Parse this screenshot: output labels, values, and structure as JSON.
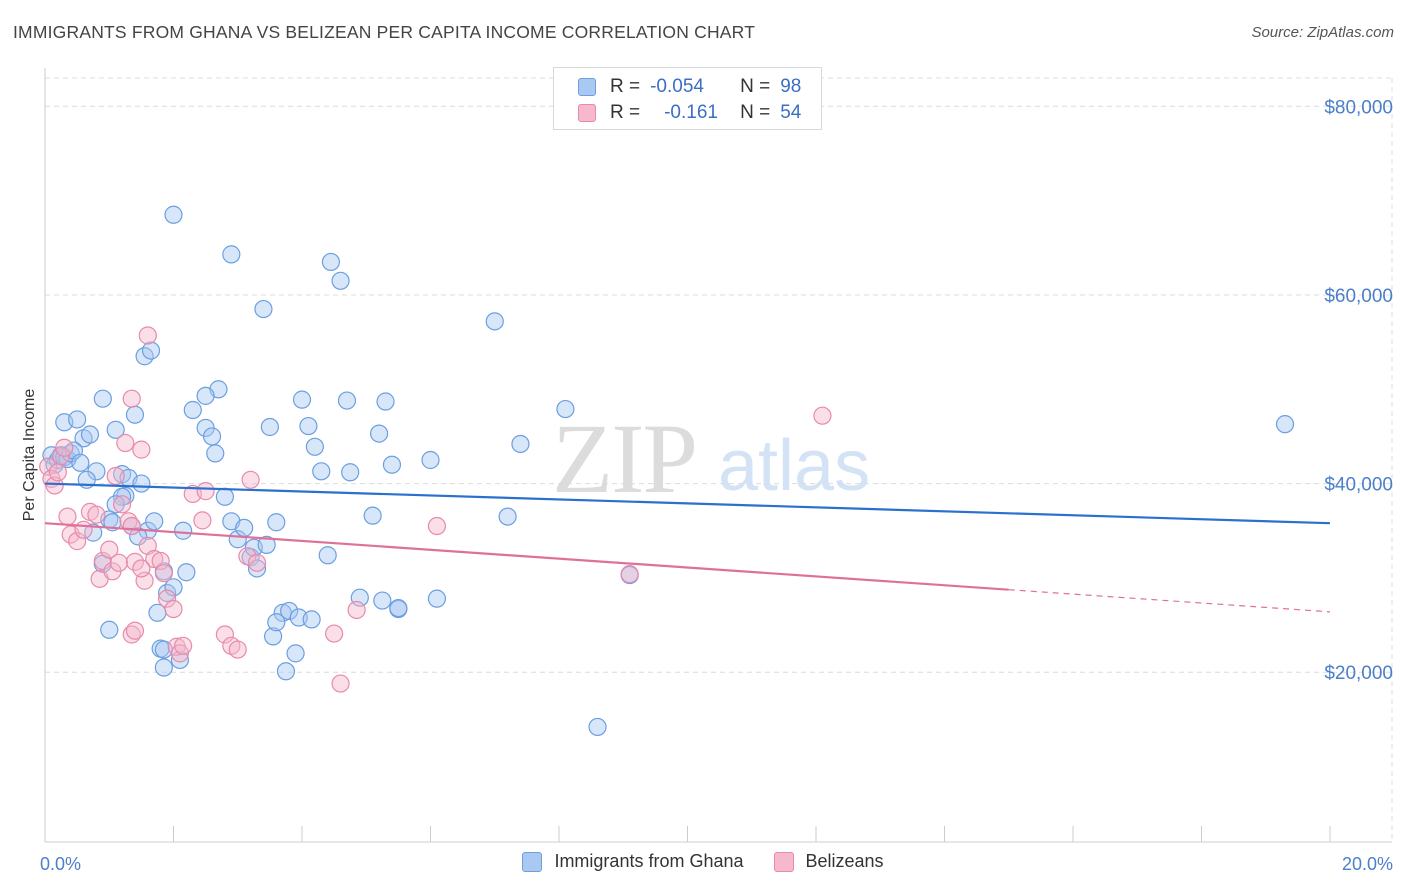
{
  "title": "IMMIGRANTS FROM GHANA VS BELIZEAN PER CAPITA INCOME CORRELATION CHART",
  "source": "Source: ZipAtlas.com",
  "watermark": {
    "zip": "ZIP",
    "atlas": "atlas"
  },
  "legend_top": {
    "rows": [
      {
        "r_label": "R =",
        "r_value": "-0.054",
        "n_label": "N =",
        "n_value": "98"
      },
      {
        "r_label": "R =",
        "r_value": "-0.161",
        "n_label": "N =",
        "n_value": "54"
      }
    ]
  },
  "colors": {
    "blue_fill": "#a9c8f2",
    "blue_stroke": "#6b9fe0",
    "blue_line": "#2b6fcf",
    "pink_fill": "#f5b8cc",
    "pink_stroke": "#e88aab",
    "pink_line": "#e0709a",
    "grid": "#dcdcdc",
    "tick_text": "#4a7fc9"
  },
  "chart_data": {
    "type": "scatter",
    "title": "IMMIGRANTS FROM GHANA VS BELIZEAN PER CAPITA INCOME CORRELATION CHART",
    "xlabel": "",
    "ylabel": "Per Capita Income",
    "xlim": [
      0,
      20
    ],
    "ylim": [
      2000,
      83000
    ],
    "x_tick_labels": [
      {
        "value": 0,
        "label": "0.0%"
      },
      {
        "value": 20,
        "label": "20.0%"
      }
    ],
    "y_tick_labels": [
      {
        "value": 20000,
        "label": "$20,000"
      },
      {
        "value": 40000,
        "label": "$40,000"
      },
      {
        "value": 60000,
        "label": "$60,000"
      },
      {
        "value": 80000,
        "label": "$80,000"
      }
    ],
    "grid": true,
    "legend_position": "bottom-center",
    "series": [
      {
        "name": "Immigrants from Ghana",
        "color": "#6b9fe0",
        "r": -0.054,
        "n": 98,
        "trend": {
          "x": [
            0,
            20
          ],
          "y": [
            40000,
            35800
          ],
          "dashed_from": null
        },
        "points": [
          [
            0.1,
            43000
          ],
          [
            0.15,
            42000
          ],
          [
            0.2,
            42500
          ],
          [
            0.25,
            43000
          ],
          [
            0.3,
            42800
          ],
          [
            0.35,
            42600
          ],
          [
            0.4,
            43200
          ],
          [
            0.3,
            46500
          ],
          [
            0.5,
            46800
          ],
          [
            0.6,
            44800
          ],
          [
            0.7,
            45200
          ],
          [
            0.45,
            43500
          ],
          [
            0.55,
            42200
          ],
          [
            0.8,
            41300
          ],
          [
            0.65,
            40400
          ],
          [
            0.9,
            49000
          ],
          [
            1.1,
            45700
          ],
          [
            1.2,
            41000
          ],
          [
            1.3,
            40600
          ],
          [
            1.4,
            47300
          ],
          [
            1.5,
            40000
          ],
          [
            1.6,
            35000
          ],
          [
            0.75,
            34800
          ],
          [
            1.0,
            36200
          ],
          [
            1.05,
            35900
          ],
          [
            1.25,
            38700
          ],
          [
            1.35,
            35500
          ],
          [
            1.45,
            34400
          ],
          [
            1.2,
            38600
          ],
          [
            1.0,
            24500
          ],
          [
            0.9,
            31500
          ],
          [
            1.7,
            36000
          ],
          [
            1.85,
            30700
          ],
          [
            1.9,
            28400
          ],
          [
            2.0,
            29000
          ],
          [
            1.75,
            26300
          ],
          [
            1.8,
            22500
          ],
          [
            1.85,
            22400
          ],
          [
            2.1,
            21300
          ],
          [
            1.85,
            20500
          ],
          [
            2.0,
            68500
          ],
          [
            2.9,
            64300
          ],
          [
            2.7,
            50000
          ],
          [
            2.5,
            49300
          ],
          [
            2.3,
            47800
          ],
          [
            2.5,
            45900
          ],
          [
            2.6,
            45000
          ],
          [
            2.65,
            43200
          ],
          [
            2.8,
            38600
          ],
          [
            2.9,
            36000
          ],
          [
            3.0,
            34100
          ],
          [
            3.1,
            35300
          ],
          [
            3.2,
            32200
          ],
          [
            3.3,
            31000
          ],
          [
            3.4,
            58500
          ],
          [
            3.5,
            46000
          ],
          [
            3.6,
            35900
          ],
          [
            3.7,
            26300
          ],
          [
            3.8,
            26500
          ],
          [
            3.55,
            23800
          ],
          [
            3.75,
            20100
          ],
          [
            3.9,
            22000
          ],
          [
            4.0,
            48900
          ],
          [
            4.1,
            46100
          ],
          [
            4.2,
            43900
          ],
          [
            4.3,
            41300
          ],
          [
            4.4,
            32400
          ],
          [
            4.45,
            63500
          ],
          [
            4.6,
            61500
          ],
          [
            4.7,
            48800
          ],
          [
            4.75,
            41200
          ],
          [
            4.9,
            27900
          ],
          [
            5.1,
            36600
          ],
          [
            5.2,
            45300
          ],
          [
            5.25,
            27600
          ],
          [
            5.3,
            48700
          ],
          [
            5.4,
            42000
          ],
          [
            5.5,
            26700
          ],
          [
            5.5,
            26800
          ],
          [
            6.0,
            42500
          ],
          [
            6.1,
            27800
          ],
          [
            7.0,
            57200
          ],
          [
            7.2,
            36500
          ],
          [
            7.4,
            44200
          ],
          [
            8.1,
            47900
          ],
          [
            8.6,
            14200
          ],
          [
            9.1,
            30300
          ],
          [
            19.3,
            46300
          ],
          [
            1.55,
            53500
          ],
          [
            1.65,
            54100
          ],
          [
            1.1,
            37800
          ],
          [
            2.15,
            35000
          ],
          [
            2.2,
            30600
          ],
          [
            3.25,
            33200
          ],
          [
            3.45,
            33500
          ],
          [
            3.6,
            25300
          ],
          [
            3.95,
            25800
          ],
          [
            4.15,
            25600
          ]
        ]
      },
      {
        "name": "Belizeans",
        "color": "#e88aab",
        "r": -0.161,
        "n": 54,
        "trend": {
          "x": [
            0,
            20
          ],
          "y": [
            35800,
            26400
          ],
          "dashed_from": 15
        },
        "points": [
          [
            0.05,
            41800
          ],
          [
            0.1,
            40500
          ],
          [
            0.15,
            39800
          ],
          [
            0.2,
            41200
          ],
          [
            0.25,
            42900
          ],
          [
            0.3,
            43800
          ],
          [
            0.35,
            36500
          ],
          [
            0.4,
            34600
          ],
          [
            0.5,
            33900
          ],
          [
            0.6,
            35100
          ],
          [
            0.7,
            37000
          ],
          [
            0.8,
            36700
          ],
          [
            0.85,
            29900
          ],
          [
            0.9,
            31800
          ],
          [
            1.0,
            33000
          ],
          [
            1.05,
            30700
          ],
          [
            1.1,
            40800
          ],
          [
            1.15,
            31600
          ],
          [
            1.2,
            37800
          ],
          [
            1.3,
            36000
          ],
          [
            1.35,
            35500
          ],
          [
            1.4,
            31700
          ],
          [
            1.5,
            43600
          ],
          [
            1.55,
            29700
          ],
          [
            1.6,
            33400
          ],
          [
            1.7,
            32000
          ],
          [
            1.8,
            31800
          ],
          [
            1.85,
            30500
          ],
          [
            1.9,
            27800
          ],
          [
            2.0,
            26700
          ],
          [
            2.05,
            22700
          ],
          [
            2.1,
            22000
          ],
          [
            2.15,
            22800
          ],
          [
            2.3,
            38900
          ],
          [
            2.45,
            36100
          ],
          [
            2.5,
            39200
          ],
          [
            2.8,
            24000
          ],
          [
            2.9,
            22800
          ],
          [
            3.0,
            22400
          ],
          [
            3.15,
            32300
          ],
          [
            3.2,
            40400
          ],
          [
            3.3,
            31600
          ],
          [
            1.35,
            24000
          ],
          [
            1.4,
            24400
          ],
          [
            1.6,
            55700
          ],
          [
            1.35,
            49000
          ],
          [
            1.25,
            44300
          ],
          [
            1.5,
            31000
          ],
          [
            4.5,
            24100
          ],
          [
            4.6,
            18800
          ],
          [
            4.85,
            26600
          ],
          [
            6.1,
            35500
          ],
          [
            9.1,
            30400
          ],
          [
            12.1,
            47200
          ]
        ]
      }
    ]
  }
}
